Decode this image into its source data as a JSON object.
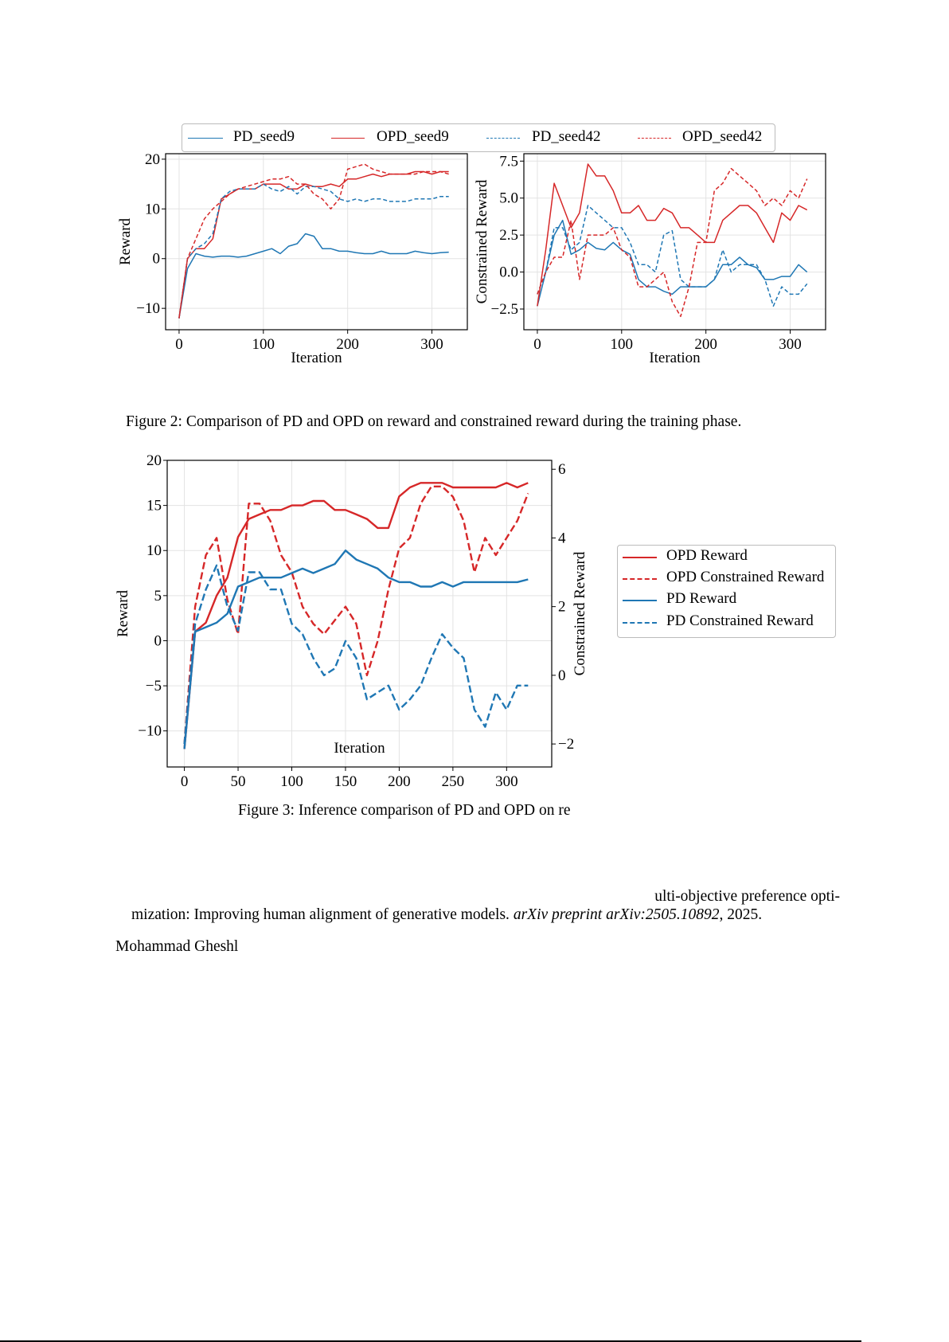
{
  "figure2": {
    "legend": [
      {
        "label": "PD_seed9",
        "color": "#1f77b4",
        "style": "solid"
      },
      {
        "label": "OPD_seed9",
        "color": "#d62728",
        "style": "solid"
      },
      {
        "label": "PD_seed42",
        "color": "#1f77b4",
        "style": "dashed"
      },
      {
        "label": "OPD_seed42",
        "color": "#d62728",
        "style": "dashed"
      }
    ],
    "caption": "Figure 2: Comparison of PD and OPD on reward and constrained reward during the training phase."
  },
  "figure3": {
    "legend": [
      {
        "label": "OPD Reward",
        "color": "#d62728",
        "style": "solid"
      },
      {
        "label": "OPD Constrained Reward",
        "color": "#d62728",
        "style": "dashed"
      },
      {
        "label": "PD Reward",
        "color": "#1f77b4",
        "style": "solid"
      },
      {
        "label": "PD Constrained Reward",
        "color": "#1f77b4",
        "style": "dashed"
      }
    ],
    "caption": "Figure 3: Inference comparison of PD and OPD on re"
  },
  "references": {
    "line1": "ulti-objective preference opti-",
    "line2_plain": "mization: Improving human alignment of generative models.",
    "line2_italic": "arXiv preprint arXiv:2505.10892",
    "line2_end": ", 2025.",
    "line3": "Mohammad Gheshl"
  },
  "chart_data": [
    {
      "type": "line",
      "title": "",
      "xlabel": "Iteration",
      "ylabel": "Reward",
      "xlim": [
        -16,
        342
      ],
      "ylim": [
        -14.3,
        21.1
      ],
      "xticks": [
        0,
        100,
        200,
        300
      ],
      "xtick_labels": [
        "0",
        "100",
        "200",
        "300"
      ],
      "yticks": [
        -10,
        0,
        10,
        20
      ],
      "ytick_labels": [
        "−10",
        "0",
        "10",
        "20"
      ],
      "grid": true,
      "x": [
        0,
        10,
        20,
        30,
        40,
        50,
        60,
        70,
        80,
        90,
        100,
        110,
        120,
        130,
        140,
        150,
        160,
        170,
        180,
        190,
        200,
        210,
        220,
        230,
        240,
        250,
        260,
        270,
        280,
        290,
        300,
        310,
        320
      ],
      "series": [
        {
          "name": "PD_seed9",
          "color": "#1f77b4",
          "style": "solid",
          "y": [
            -12,
            -2,
            1,
            0.5,
            0.3,
            0.5,
            0.5,
            0.3,
            0.5,
            1,
            1.5,
            2,
            1,
            2.5,
            3,
            5,
            4.5,
            2,
            2,
            1.5,
            1.5,
            1.2,
            1,
            1,
            1.5,
            1,
            1,
            1,
            1.5,
            1.2,
            1,
            1.2,
            1.3
          ]
        },
        {
          "name": "OPD_seed9",
          "color": "#d62728",
          "style": "solid",
          "y": [
            -12,
            0,
            2,
            2,
            4,
            12,
            13,
            14,
            14,
            14,
            15,
            15,
            15,
            14,
            14,
            15,
            14.5,
            14.5,
            15,
            14.5,
            16,
            16,
            16.5,
            17,
            16.5,
            17,
            17,
            17,
            17.5,
            17.5,
            17,
            17.5,
            17.5
          ]
        },
        {
          "name": "PD_seed42",
          "color": "#1f77b4",
          "style": "dashed",
          "y": [
            -12,
            0,
            2,
            3,
            5,
            12,
            13.5,
            14,
            14,
            14,
            15,
            14,
            13.5,
            14.5,
            13,
            14.5,
            14.5,
            14,
            13.5,
            12,
            11.5,
            12,
            11.5,
            12,
            12,
            11.5,
            11.5,
            11.5,
            12,
            12,
            12,
            12.5,
            12.5
          ]
        },
        {
          "name": "OPD_seed42",
          "color": "#d62728",
          "style": "dashed",
          "y": [
            -12,
            0,
            4,
            8,
            10,
            11.5,
            13,
            14,
            14.5,
            15,
            15.5,
            16,
            16,
            16.5,
            15,
            15,
            13,
            12,
            10,
            12,
            18,
            18.5,
            19,
            18,
            17.5,
            17,
            17,
            17,
            17,
            17.5,
            17.5,
            17.5,
            17
          ]
        }
      ]
    },
    {
      "type": "line",
      "title": "",
      "xlabel": "Iteration",
      "ylabel": "Constrained Reward",
      "xlim": [
        -16,
        342
      ],
      "ylim": [
        -3.9,
        8.0
      ],
      "xticks": [
        0,
        100,
        200,
        300
      ],
      "xtick_labels": [
        "0",
        "100",
        "200",
        "300"
      ],
      "yticks": [
        -2.5,
        0,
        2.5,
        5,
        7.5
      ],
      "ytick_labels": [
        "−2.5",
        "0.0",
        "2.5",
        "5.0",
        "7.5"
      ],
      "grid": true,
      "x": [
        0,
        10,
        20,
        30,
        40,
        50,
        60,
        70,
        80,
        90,
        100,
        110,
        120,
        130,
        140,
        150,
        160,
        170,
        180,
        190,
        200,
        210,
        220,
        230,
        240,
        250,
        260,
        270,
        280,
        290,
        300,
        310,
        320
      ],
      "series": [
        {
          "name": "PD_seed9",
          "color": "#1f77b4",
          "style": "solid",
          "y": [
            -2.3,
            0,
            2.5,
            3.5,
            1.2,
            1.5,
            2,
            1.6,
            1.5,
            2,
            1.5,
            1.2,
            -0.5,
            -1,
            -1,
            -1.3,
            -1.5,
            -1,
            -1,
            -1,
            -1,
            -0.5,
            0.5,
            0.5,
            1,
            0.5,
            0.3,
            -0.5,
            -0.5,
            -0.3,
            -0.3,
            0.5,
            0
          ]
        },
        {
          "name": "OPD_seed9",
          "color": "#d62728",
          "style": "solid",
          "y": [
            -2.3,
            1.5,
            6,
            4.5,
            3,
            4,
            7.3,
            6.5,
            6.5,
            5.5,
            4,
            4,
            4.5,
            3.5,
            3.5,
            4.3,
            4,
            3,
            3,
            2.5,
            2,
            2,
            3.5,
            4,
            4.5,
            4.5,
            4,
            3,
            2,
            4,
            3.5,
            4.5,
            4.2
          ]
        },
        {
          "name": "PD_seed42",
          "color": "#1f77b4",
          "style": "dashed",
          "y": [
            -1.5,
            0,
            3,
            3,
            1.5,
            2,
            4.5,
            4,
            3.5,
            3,
            3,
            2,
            0.5,
            0.5,
            0,
            2.5,
            2.8,
            -0.5,
            -1,
            -1,
            -1,
            -0.5,
            1.5,
            0,
            0.5,
            0.5,
            0.5,
            -0.5,
            -2.3,
            -1,
            -1.5,
            -1.5,
            -0.8
          ]
        },
        {
          "name": "OPD_seed42",
          "color": "#d62728",
          "style": "dashed",
          "y": [
            -1.5,
            0,
            1,
            1,
            3.5,
            -0.5,
            2.5,
            2.5,
            2.5,
            3,
            1.5,
            1,
            -1,
            -1,
            -0.5,
            0,
            -2,
            -3,
            -1,
            2,
            2,
            5.5,
            6,
            7,
            6.5,
            6,
            5.5,
            4.5,
            5,
            4.5,
            5.5,
            5,
            6.3
          ]
        }
      ]
    },
    {
      "type": "line",
      "title": "",
      "xlabel": "Iteration",
      "ylabel": "Reward",
      "ylabel_right": "Constrained Reward",
      "xlim": [
        -16,
        342
      ],
      "ylim": [
        -14,
        20
      ],
      "ylim_right": [
        -2.67,
        6.26
      ],
      "xticks": [
        0,
        50,
        100,
        150,
        200,
        250,
        300
      ],
      "xtick_labels": [
        "0",
        "50",
        "100",
        "150",
        "200",
        "250",
        "300"
      ],
      "yticks": [
        -10,
        -5,
        0,
        5,
        10,
        15,
        20
      ],
      "ytick_labels": [
        "−10",
        "−5",
        "0",
        "5",
        "10",
        "15",
        "20"
      ],
      "yticks_right": [
        -2,
        0,
        2,
        4,
        6
      ],
      "ytick_labels_right": [
        "−2",
        "0",
        "2",
        "4",
        "6"
      ],
      "grid": true,
      "legend_position": "right-outside",
      "x": [
        0,
        10,
        20,
        30,
        40,
        50,
        60,
        70,
        80,
        90,
        100,
        110,
        120,
        130,
        140,
        150,
        160,
        170,
        180,
        190,
        200,
        210,
        220,
        230,
        240,
        250,
        260,
        270,
        280,
        290,
        300,
        310,
        320
      ],
      "series": [
        {
          "name": "OPD Reward",
          "color": "#d62728",
          "style": "solid",
          "axis": "left",
          "y": [
            -12,
            1,
            2,
            5,
            7,
            11.5,
            13.5,
            14,
            14.5,
            14.5,
            15,
            15,
            15.5,
            15.5,
            14.5,
            14.5,
            14,
            13.5,
            12.5,
            12.5,
            16,
            17,
            17.5,
            17.5,
            17.5,
            17,
            17,
            17,
            17,
            17,
            17.5,
            17,
            17.5
          ]
        },
        {
          "name": "OPD Constrained Reward",
          "color": "#d62728",
          "style": "dashed",
          "axis": "right",
          "y": [
            -2,
            2,
            3.5,
            4,
            2.2,
            1.2,
            5,
            5,
            4.5,
            3.5,
            3,
            2,
            1.5,
            1.2,
            1.6,
            2,
            1.5,
            0,
            1,
            2.5,
            3.7,
            4,
            5,
            5.5,
            5.5,
            5.2,
            4.5,
            3,
            4,
            3.5,
            4,
            4.5,
            5.3
          ]
        },
        {
          "name": "PD Reward",
          "color": "#1f77b4",
          "style": "solid",
          "axis": "left",
          "y": [
            -12,
            1,
            1.5,
            2,
            3,
            6,
            6.5,
            7,
            7,
            7,
            7.5,
            8,
            7.5,
            8,
            8.5,
            10,
            9,
            8.5,
            8,
            7,
            6.5,
            6.5,
            6,
            6,
            6.5,
            6,
            6.5,
            6.5,
            6.5,
            6.5,
            6.5,
            6.5,
            6.8
          ]
        },
        {
          "name": "PD Constrained Reward",
          "color": "#1f77b4",
          "style": "dashed",
          "axis": "right",
          "y": [
            -2,
            1.5,
            2.5,
            3.2,
            2,
            1.3,
            3,
            3,
            2.5,
            2.5,
            1.5,
            1.2,
            0.5,
            0,
            0.2,
            1,
            0.5,
            -0.7,
            -0.5,
            -0.3,
            -1,
            -0.7,
            -0.3,
            0.5,
            1.2,
            0.8,
            0.5,
            -1,
            -1.5,
            -0.5,
            -1,
            -0.3,
            -0.3
          ]
        }
      ]
    }
  ]
}
